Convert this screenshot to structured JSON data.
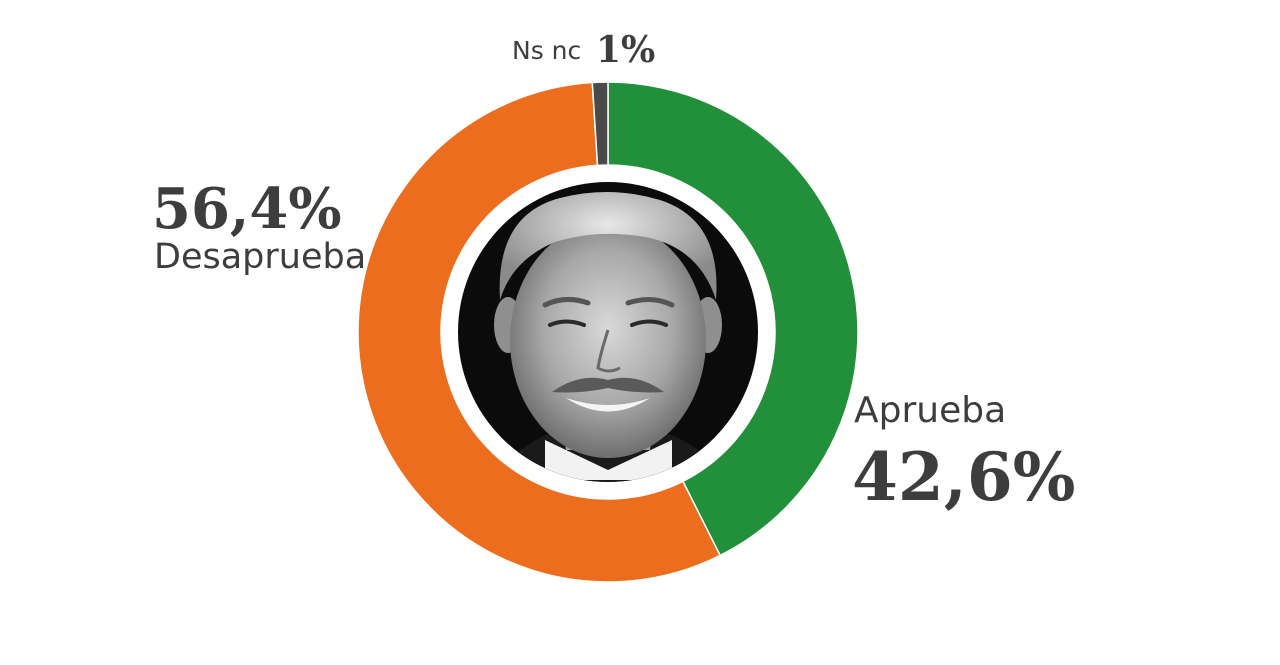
{
  "chart_data": {
    "type": "pie",
    "variant": "donut",
    "slices": [
      {
        "label": "Aprueba",
        "value": 42.6,
        "value_label": "42,6%",
        "color": "#22903a"
      },
      {
        "label": "Desaprueba",
        "value": 56.4,
        "value_label": "56,4%",
        "color": "#ec6d1e"
      },
      {
        "label": "Ns nc",
        "value": 1,
        "value_label": "1%",
        "color": "#4a4a4a"
      }
    ],
    "center_image": "grayscale-portrait-smiling-man"
  },
  "colors": {
    "text": "#3d3d3d",
    "ring_inner": "#ffffff",
    "portrait_bg": "#0b0b0b"
  }
}
